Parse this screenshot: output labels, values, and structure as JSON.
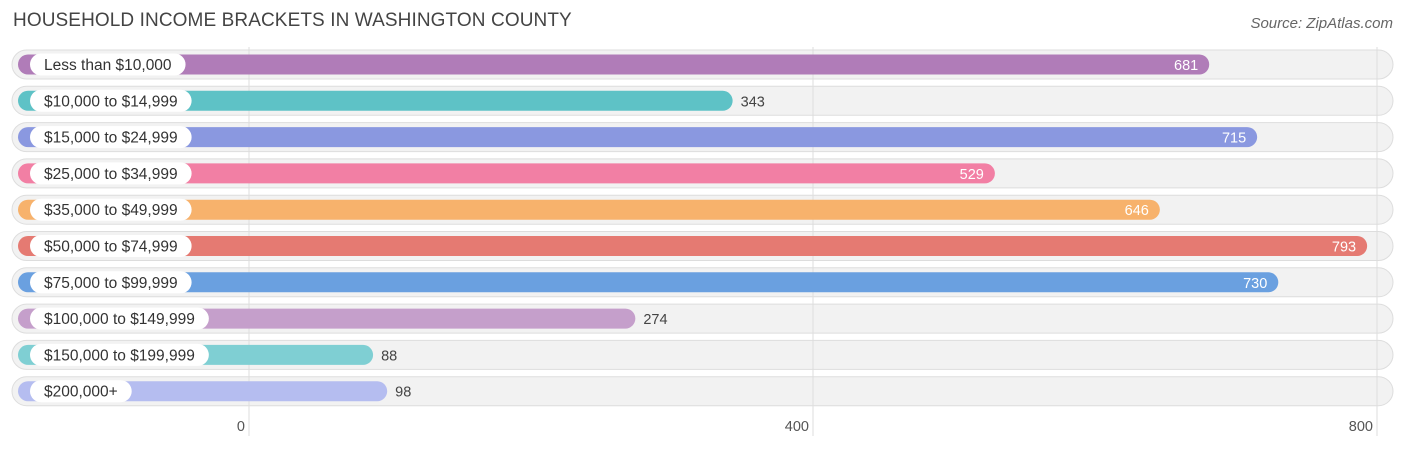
{
  "title": "HOUSEHOLD INCOME BRACKETS IN WASHINGTON COUNTY",
  "source": "Source: ZipAtlas.com",
  "chart_data": {
    "type": "bar",
    "orientation": "horizontal",
    "title": "HOUSEHOLD INCOME BRACKETS IN WASHINGTON COUNTY",
    "categories": [
      "Less than $10,000",
      "$10,000 to $14,999",
      "$15,000 to $24,999",
      "$25,000 to $34,999",
      "$35,000 to $49,999",
      "$50,000 to $74,999",
      "$75,000 to $99,999",
      "$100,000 to $149,999",
      "$150,000 to $199,999",
      "$200,000+"
    ],
    "values": [
      681,
      343,
      715,
      529,
      646,
      793,
      730,
      274,
      88,
      98
    ],
    "value_labels": [
      "681",
      "343",
      "715",
      "529",
      "646",
      "793",
      "730",
      "274",
      "88",
      "98"
    ],
    "colors": [
      "#b07cb8",
      "#5ec2c6",
      "#8a98e0",
      "#f27fa4",
      "#f7b26c",
      "#e57a72",
      "#6aa0e0",
      "#c59fcb",
      "#7fcfd3",
      "#b5bdf0"
    ],
    "xlim": [
      0,
      800
    ],
    "xticks": [
      0,
      400,
      800
    ],
    "xtick_labels": [
      "0",
      "400",
      "800"
    ],
    "grid": true
  }
}
